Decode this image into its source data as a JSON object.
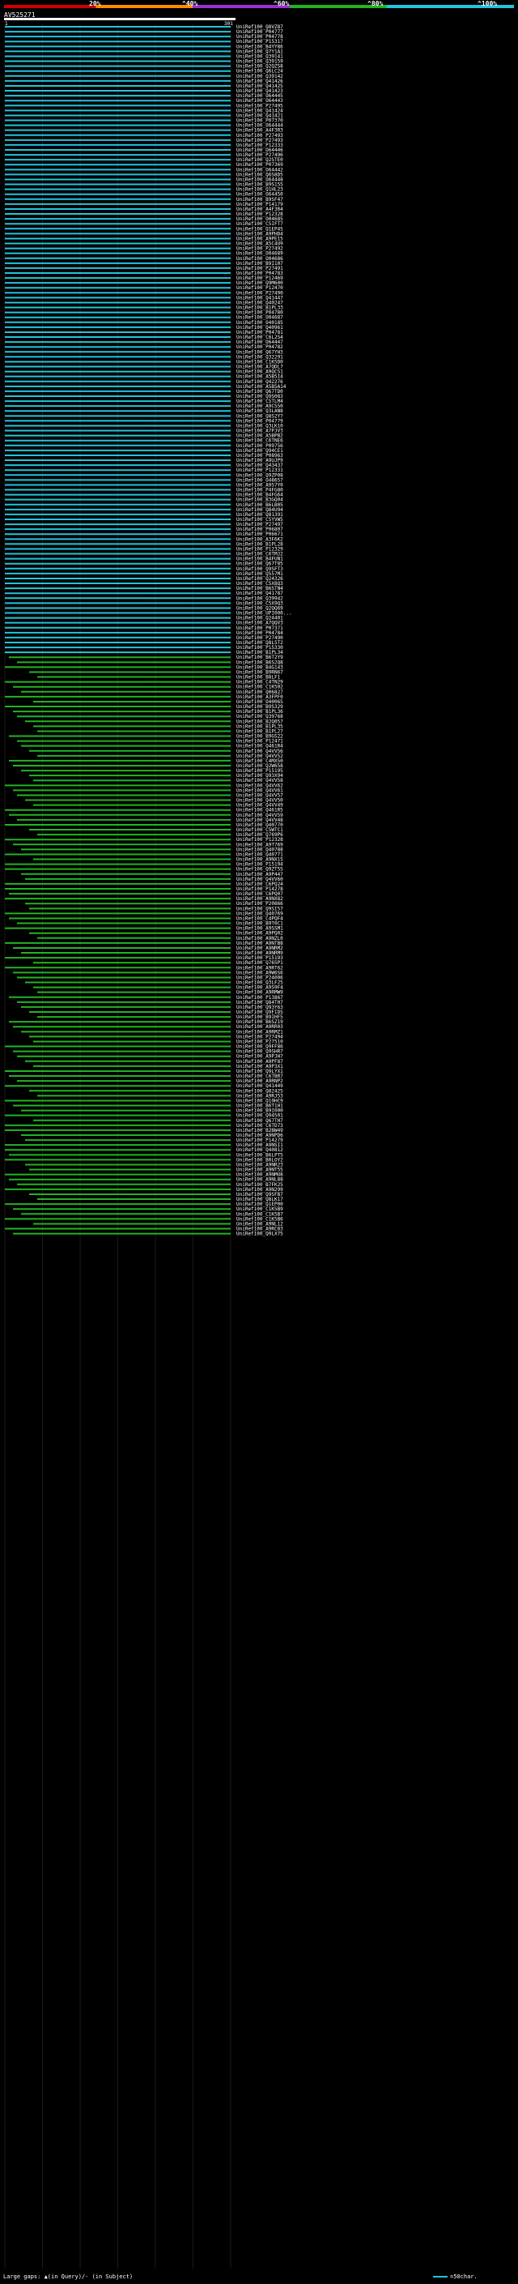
{
  "header": {
    "scale_labels": [
      "20%",
      "^40%",
      "^60%",
      "^80%",
      "^100%"
    ],
    "query_id": "AV525271",
    "start_pos": "1",
    "end_pos": "301"
  },
  "colors": {
    "cyan": "#23c4dc",
    "green": "#22b422",
    "query": "#ffffff",
    "background": "#000000",
    "grid": "#1a1a1a"
  },
  "hits": [
    "UniRef100_Q8VZ87",
    "UniRef100_P04777",
    "UniRef100_P04778",
    "UniRef100_P15317",
    "UniRef100_B4YY86",
    "UniRef100_Q7Y1A1",
    "UniRef100_Q39141",
    "UniRef100_Q39159",
    "UniRef100_Q2QZS8",
    "UniRef100_Q6LC24",
    "UniRef100_Q39142",
    "UniRef100_Q41426",
    "UniRef100_Q41425",
    "UniRef100_Q41423",
    "UniRef100_O64445",
    "UniRef100_O64443",
    "UniRef100_P27495",
    "UniRef100_Q41424",
    "UniRef100_Q41421",
    "UniRef100_P07370",
    "UniRef100_O64444",
    "UniRef100_A4F3R3",
    "UniRef100_P27493",
    "UniRef100_P27493",
    "UniRef100_P12333",
    "UniRef100_O64446",
    "UniRef100_P27496",
    "UniRef100_Q2STE0",
    "UniRef100_P07369",
    "UniRef100_O64442",
    "UniRef100_Q6S8D5",
    "UniRef100_O64448",
    "UniRef100_B9S155",
    "UniRef100_Q1HL23",
    "UniRef100_O64450",
    "UniRef100_B9SF47",
    "UniRef100_P14179",
    "UniRef100_A4F3R4",
    "UniRef100_P12328",
    "UniRef100_O04685",
    "UniRef100_C5IFT7",
    "UniRef100_Q1EP45",
    "UniRef100_A9PHD4",
    "UniRef100_A9PE15",
    "UniRef100_A5C4U9",
    "UniRef100_P27492",
    "UniRef100_O04689",
    "UniRef100_O04686",
    "UniRef100_B9I107",
    "UniRef100_P27491",
    "UniRef100_P04783",
    "UniRef100_P12469",
    "UniRef100_Q9M600",
    "UniRef100_P12470",
    "UniRef100_P27490",
    "UniRef100_Q41447",
    "UniRef100_Q40247",
    "UniRef100_B1PL33",
    "UniRef100_P04780",
    "UniRef100_O04687",
    "UniRef100_O40185",
    "UniRef100_Q40961",
    "UniRef100_P04781",
    "UniRef100_C6L2S4",
    "UniRef100_O64447",
    "UniRef100_P04782",
    "UniRef100_Q67YH3",
    "UniRef100_Q32291",
    "UniRef100_C1K5D0",
    "UniRef100_A7QDL7",
    "UniRef100_A9QCS1",
    "UniRef100_A5B5I4",
    "UniRef100_Q42276",
    "UniRef100_A5B5A14",
    "UniRef100_Q67TD0",
    "UniRef100_Q9S083",
    "UniRef100_C5TLM4",
    "UniRef100_A9CS50",
    "UniRef100_Q3LAN8",
    "UniRef100_Q8S2Y7",
    "UniRef100_P04779",
    "UniRef100_Q3LK10",
    "UniRef100_A7PJV3",
    "UniRef100_A5BPB2",
    "UniRef100_C6TNE6",
    "UniRef100_P09756",
    "UniRef100_Q94CE1",
    "UniRef100_P08963",
    "UniRef100_A9UJP9",
    "UniRef100_Q43437",
    "UniRef100_P12331",
    "UniRef100_Q9ZP08",
    "UniRef100_O48657",
    "UniRef100_A9S7Y0",
    "UniRef100_P4FG80",
    "UniRef100_B4FG64",
    "UniRef100_B3GQ04",
    "UniRef100_B6LB05",
    "UniRef100_Q84U94",
    "UniRef100_Q81391",
    "UniRef100_C5YVW5",
    "UniRef100_P27497",
    "UniRef100_P06807",
    "UniRef100_P06671",
    "UniRef100_A3F6K2",
    "UniRef100_B1PL28",
    "UniRef100_P12329",
    "UniRef100_C6TMJ2",
    "UniRef100_B4FUN1",
    "UniRef100_Q67T85",
    "UniRef100_Q9SFT3",
    "UniRef100_Q557M1",
    "UniRef100_Q24326",
    "UniRef100_C5X8Q3",
    "UniRef100_B6STN4",
    "UniRef100_Q41787",
    "UniRef100_Q39942",
    "UniRef100_C5X9Q3",
    "UniRef100_Q2QQ69",
    "UniRef100_UPI000...",
    "UniRef100_Q24401",
    "UniRef100_A7QQV3",
    "UniRef100_P07371",
    "UniRef100_P04784",
    "UniRef100_P27490",
    "UniRef100_Q8L5T2",
    "UniRef100_P15330",
    "UniRef100_B1PL34",
    "UniRef100_B6T2Y9",
    "UniRef100_B6S2Q8",
    "UniRef100_B4G143",
    "UniRef100_B9RN67",
    "UniRef100_B8LF1",
    "UniRef100_C4TN29",
    "UniRef100_C1K502",
    "UniRef100_Q06827",
    "UniRef100_A3FPF0",
    "UniRef100_O40065",
    "UniRef100_B9S329",
    "UniRef100_B1PL36",
    "UniRef100_Q39768",
    "UniRef100_B2Q057",
    "UniRef100_B1PL35",
    "UniRef100_B1PL27",
    "UniRef100_B9GS22",
    "UniRef100_P12471",
    "UniRef100_Q461R4",
    "UniRef100_Q4VV56",
    "UniRef100_Q4VV52",
    "UniRef100_C4MX50",
    "UniRef100_Q2W658",
    "UniRef100_P15195",
    "UniRef100_Q93X94",
    "UniRef100_Q4VV58",
    "UniRef100_Q4VV62",
    "UniRef100_Q4VV61",
    "UniRef100_Q4VV57",
    "UniRef100_Q4VV50",
    "UniRef100_Q4VV49",
    "UniRef100_Q461R5",
    "UniRef100_Q4VV59",
    "UniRef100_Q4VV48",
    "UniRef100_Q40770",
    "UniRef100_C5WTC1",
    "UniRef100_Q769P6",
    "UniRef100_P12328",
    "UniRef100_A9T769",
    "UniRef100_Q40788",
    "UniRef100_Q40771",
    "UniRef100_A9NX15",
    "UniRef100_P15194",
    "UniRef100_Q9ZT55",
    "UniRef100_A9P447",
    "UniRef100_Q4VV60",
    "UniRef100_C6PQ24",
    "UniRef100_P14278",
    "UniRef100_C6PQ07",
    "UniRef100_A9NX82",
    "UniRef100_P20866",
    "UniRef100_Q9SI57",
    "UniRef100_Q40769",
    "UniRef100_C4PQF4",
    "UniRef100_B9T0C1",
    "UniRef100_A9SSM1",
    "UniRef100_A9PQ02",
    "UniRef100_A9NZL0",
    "UniRef100_A9NTB8",
    "UniRef100_A9NRM2",
    "UniRef100_A9NRM9",
    "UniRef100_P15193",
    "UniRef100_Q765P1",
    "UniRef100_A9RT62",
    "UniRef100_A9W6S6",
    "UniRef100_P24006",
    "UniRef100_Q3LF25",
    "UniRef100_A9S9F4",
    "UniRef100_A9RMW9",
    "UniRef100_P13867",
    "UniRef100_Q84TH7",
    "UniRef100_Q93Y63",
    "UniRef100_Q9FID5",
    "UniRef100_B9IHF5",
    "UniRef100_B6SZ19",
    "UniRef100_A9RR03",
    "UniRef100_A9RMZ1",
    "UniRef100_P27494",
    "UniRef100_P27510",
    "UniRef100_Q9FF86",
    "UniRef100_Q9SHR7",
    "UniRef100_A9PJH7",
    "UniRef100_A9PF87",
    "UniRef100_A9P3X1",
    "UniRef100_Q9LYX1",
    "UniRef100_C6TBR7",
    "UniRef100_A9RNP2",
    "UniRef100_Q41449",
    "UniRef100_Q82425",
    "UniRef100_A9RJ53",
    "UniRef100_Q10HC9",
    "UniRef100_B6T1H1",
    "UniRef100_B9I000",
    "UniRef100_Q94501",
    "UniRef100_Q67TH7",
    "UniRef100_C6TD73",
    "UniRef100_B2BW49",
    "UniRef100_A9NPD6",
    "UniRef100_P14279",
    "UniRef100_A9NSI1",
    "UniRef100_Q40812",
    "UniRef100_B6LPT5",
    "UniRef100_B0LOY2",
    "UniRef100_A9NR23",
    "UniRef100_A9NT55",
    "UniRef100_A9NMU8",
    "UniRef100_A9NL88",
    "UniRef100_B7FK25",
    "UniRef100_A9N299",
    "UniRef100_Q9SFB7",
    "UniRef100_Q8LK17",
    "UniRef100_Q1EP00",
    "UniRef100_C1K5B9",
    "UniRef100_C1K5B7",
    "UniRef100_C1K5B6",
    "UniRef100_A9NL12",
    "UniRef100_A9RC83",
    "UniRef100_Q9LX75"
  ],
  "footer": {
    "gaps_text": "Large gaps: ▲(in Query)/- (in Subject)",
    "legend_text": "=50char."
  }
}
